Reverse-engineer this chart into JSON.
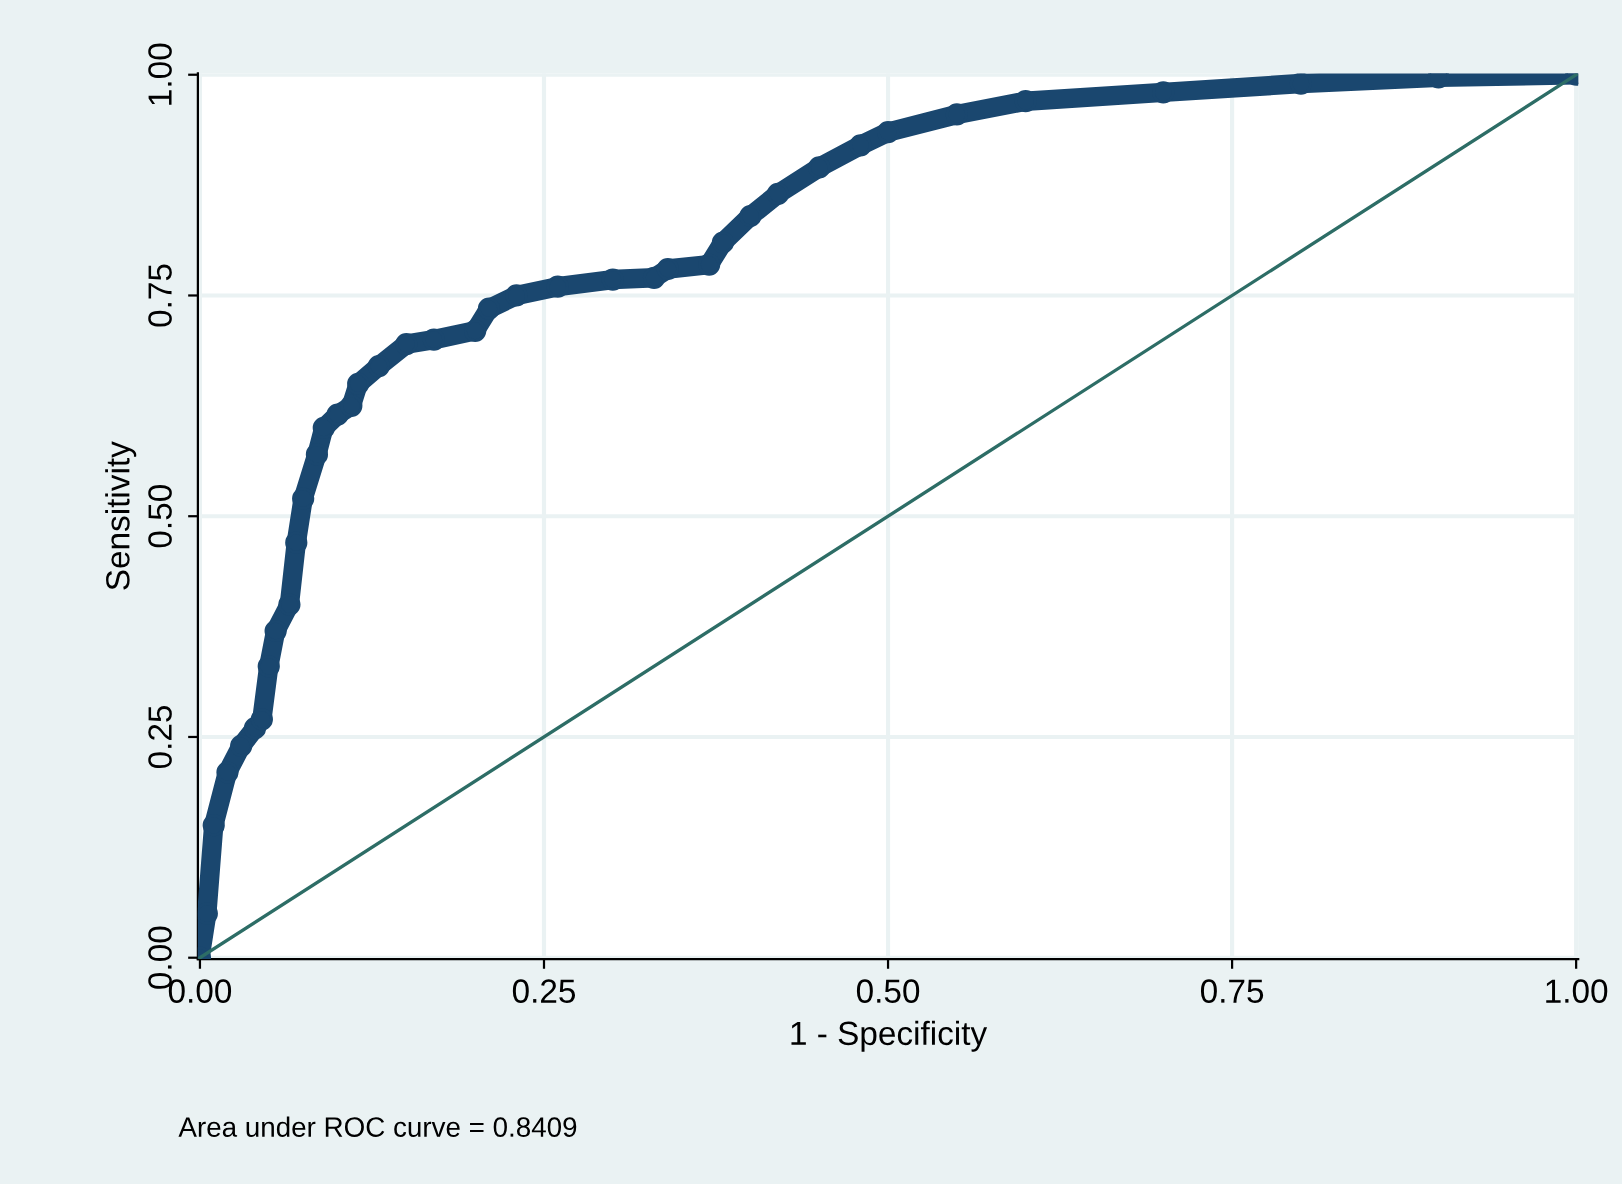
{
  "chart_data": {
    "type": "line",
    "xlabel": "1 - Specificity",
    "ylabel": "Sensitivity",
    "annotations": [
      "Area under ROC curve = 0.8409"
    ],
    "xlim": [
      0,
      1
    ],
    "ylim": [
      0,
      1
    ],
    "xticks": [
      {
        "value": 0,
        "label": "0.00"
      },
      {
        "value": 0.25,
        "label": "0.25"
      },
      {
        "value": 0.5,
        "label": "0.50"
      },
      {
        "value": 0.75,
        "label": "0.75"
      },
      {
        "value": 1,
        "label": "1.00"
      }
    ],
    "yticks": [
      {
        "value": 0,
        "label": "0.00"
      },
      {
        "value": 0.25,
        "label": "0.25"
      },
      {
        "value": 0.5,
        "label": "0.50"
      },
      {
        "value": 0.75,
        "label": "0.75"
      },
      {
        "value": 1,
        "label": "1.00"
      }
    ],
    "grid": true,
    "series": [
      {
        "color": "#1a476f",
        "marker": "circle",
        "x": [
          0,
          0.005,
          0.01,
          0.02,
          0.03,
          0.04,
          0.045,
          0.05,
          0.055,
          0.065,
          0.07,
          0.075,
          0.085,
          0.09,
          0.1,
          0.11,
          0.115,
          0.13,
          0.15,
          0.17,
          0.2,
          0.21,
          0.23,
          0.26,
          0.3,
          0.33,
          0.34,
          0.37,
          0.38,
          0.4,
          0.42,
          0.45,
          0.48,
          0.5,
          0.55,
          0.6,
          0.7,
          0.8,
          0.9,
          1
        ],
        "values": [
          0,
          0.05,
          0.15,
          0.21,
          0.24,
          0.26,
          0.27,
          0.33,
          0.37,
          0.4,
          0.47,
          0.52,
          0.57,
          0.6,
          0.615,
          0.625,
          0.65,
          0.67,
          0.695,
          0.7,
          0.71,
          0.735,
          0.75,
          0.76,
          0.768,
          0.77,
          0.78,
          0.785,
          0.81,
          0.84,
          0.865,
          0.895,
          0.92,
          0.935,
          0.955,
          0.97,
          0.98,
          0.99,
          0.997,
          1
        ]
      },
      {
        "color": "#2d6d66",
        "marker": "none",
        "x": [
          0,
          1
        ],
        "values": [
          0,
          1
        ]
      }
    ]
  }
}
